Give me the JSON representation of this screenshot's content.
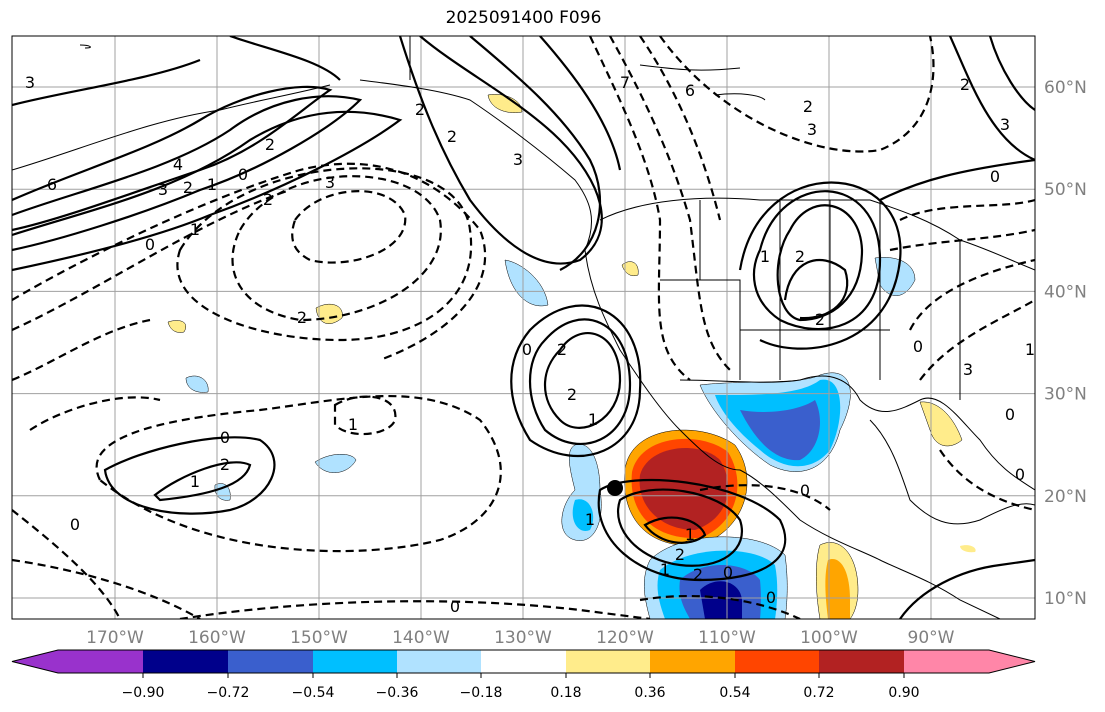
{
  "title": "2025091400 F096",
  "lon_ticks": [
    "170°W",
    "160°W",
    "150°W",
    "140°W",
    "130°W",
    "120°W",
    "110°W",
    "100°W",
    "90°W"
  ],
  "lat_ticks": [
    "60°N",
    "50°N",
    "40°N",
    "30°N",
    "20°N",
    "10°N"
  ],
  "colorbar": {
    "ticks": [
      "−0.90",
      "−0.72",
      "−0.54",
      "−0.36",
      "−0.18",
      "0.18",
      "0.36",
      "0.54",
      "0.72",
      "0.90"
    ],
    "colors": [
      "#9932cc",
      "#00008b",
      "#3a5fcd",
      "#00bfff",
      "#b0e2ff",
      "#ffffff",
      "#ffec8b",
      "#ffa500",
      "#ff4500",
      "#b22222",
      "#ff86a8"
    ],
    "extend": "both"
  },
  "contour_labels": [
    "3",
    "6",
    "4",
    "3",
    "2",
    "1",
    "0",
    "2",
    "3",
    "0",
    "1",
    "2",
    "2",
    "2",
    "3",
    "2",
    "0",
    "2",
    "2",
    "1",
    "1",
    "2",
    "0",
    "1",
    "0",
    "1",
    "0",
    "1",
    "2",
    "1",
    "2",
    "0",
    "0",
    "0",
    "3",
    "6",
    "2",
    "7",
    "3",
    "2",
    "1",
    "2",
    "2",
    "0",
    "0",
    "0",
    "1",
    "0",
    "3"
  ],
  "marker": "storm-center"
}
